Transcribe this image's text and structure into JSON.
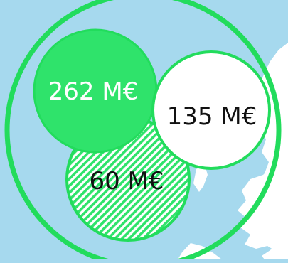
{
  "colors": {
    "sea": "#a6d9ee",
    "land": "#ffffff",
    "accent": "#2fe36b",
    "accent_stroke": "#22dc5c",
    "text_on_accent": "#ffffff",
    "text_dark": "#111111"
  },
  "bubbles": {
    "funding_a": {
      "label": "262 M€",
      "value": 262,
      "fill": "solid-green"
    },
    "funding_b": {
      "label": "135 M€",
      "value": 135,
      "fill": "white"
    },
    "funding_c": {
      "label": "60 M€",
      "value": 60,
      "fill": "green-hatched"
    }
  }
}
